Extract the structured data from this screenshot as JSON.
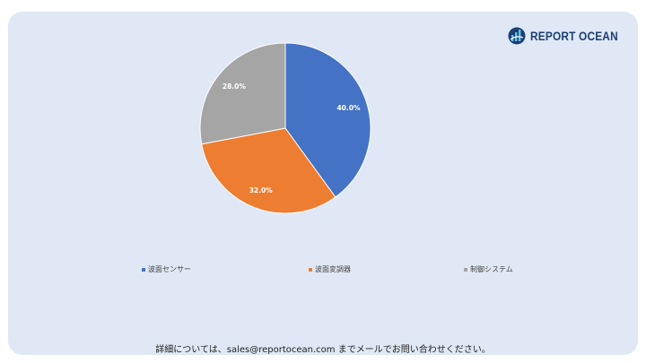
{
  "brand": {
    "name": "REPORT OCEAN"
  },
  "footer": {
    "text": "詳細については、sales@reportocean.com までメールでお問い合わせください。"
  },
  "chart_data": {
    "type": "pie",
    "title": "",
    "labels": [
      "波面センサー",
      "波面変調器",
      "制御システム"
    ],
    "values": [
      40.0,
      32.0,
      28.0
    ],
    "data_labels": [
      "40.0%",
      "32.0%",
      "28.0%"
    ],
    "colors": [
      "#4472c4",
      "#ed7d31",
      "#a5a5a5"
    ],
    "legend_position": "bottom"
  }
}
